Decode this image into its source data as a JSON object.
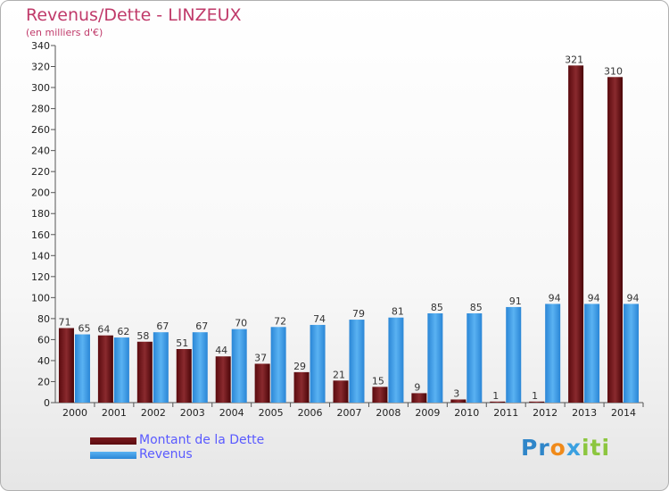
{
  "chart_data": {
    "type": "bar",
    "title": "Revenus/Dette - LINZEUX",
    "subtitle": "(en milliers d'€)",
    "categories": [
      "2000",
      "2001",
      "2002",
      "2003",
      "2004",
      "2005",
      "2006",
      "2007",
      "2008",
      "2009",
      "2010",
      "2011",
      "2012",
      "2013",
      "2014"
    ],
    "series": [
      {
        "name": "Montant de la Dette",
        "color": "#6b0f14",
        "values": [
          71,
          64,
          58,
          51,
          44,
          37,
          29,
          21,
          15,
          9,
          3,
          1,
          1,
          321,
          310
        ]
      },
      {
        "name": "Revenus",
        "color": "#3a9be8",
        "values": [
          65,
          62,
          67,
          67,
          70,
          72,
          74,
          79,
          81,
          85,
          85,
          91,
          94,
          94,
          94
        ]
      }
    ],
    "ylim": [
      0,
      340
    ],
    "ytick_step": 20,
    "grid": false,
    "legend_position": "bottom-left"
  },
  "branding": {
    "logo_parts": [
      "Pr",
      "o",
      "x",
      "iti"
    ]
  }
}
